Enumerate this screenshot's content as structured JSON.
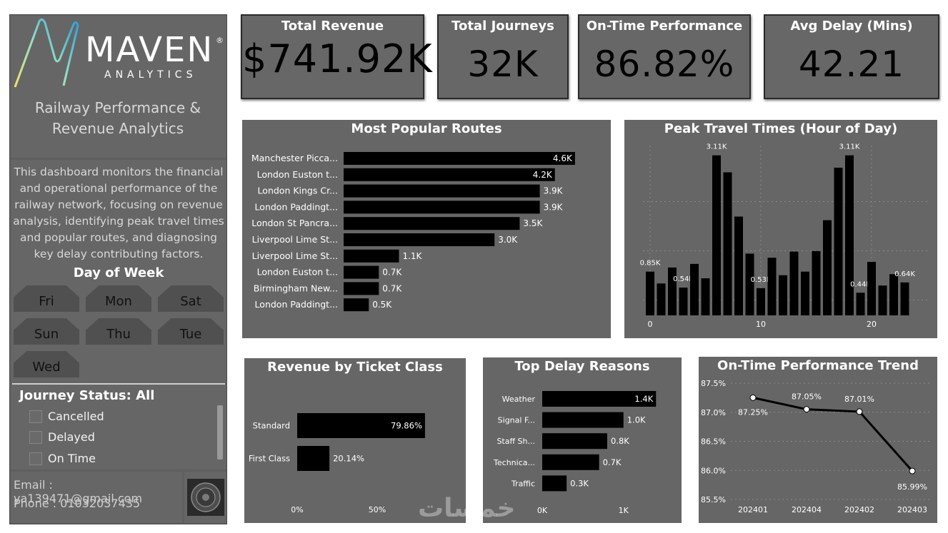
{
  "brand": {
    "name": "MAVEN",
    "reg": "®",
    "sub": "ANALYTICS"
  },
  "report_title": "Railway Performance & Revenue Analytics",
  "description": "This dashboard monitors the financial and operational performance of the railway network, focusing on revenue analysis, identifying peak travel times and popular routes, and diagnosing key delay contributing factors.",
  "day_slicer": {
    "title": "Day of Week",
    "options": [
      "Fri",
      "Mon",
      "Sat",
      "Sun",
      "Thu",
      "Tue",
      "Wed"
    ]
  },
  "status_slicer": {
    "title": "Journey Status: All",
    "options": [
      "Cancelled",
      "Delayed",
      "On Time"
    ]
  },
  "contact": {
    "email": "Email : ya139471@gmail.com",
    "phone": "Phone : 01032037435"
  },
  "kpis": {
    "revenue": {
      "label": "Total Revenue",
      "value": "$741.92K"
    },
    "journeys": {
      "label": "Total Journeys",
      "value": "32K"
    },
    "ontime": {
      "label": "On-Time Performance",
      "value": "86.82%"
    },
    "delay": {
      "label": "Avg Delay (Mins)",
      "value": "42.21"
    }
  },
  "watermark": "خمسات",
  "colors": {
    "panel": "#666666",
    "bar": "#000000",
    "text": "#ffffff"
  },
  "chart_data": [
    {
      "id": "routes",
      "type": "bar",
      "orientation": "horizontal",
      "title": "Most Popular Routes",
      "categories": [
        "Manchester Picca...",
        "London Euston t...",
        "London Kings Cr...",
        "London Paddingt...",
        "London St Pancra...",
        "Liverpool Lime St...",
        "Liverpool Lime St...",
        "London Euston t...",
        "Birmingham New...",
        "London Paddingt..."
      ],
      "values": [
        4.6,
        4.2,
        3.9,
        3.9,
        3.5,
        3.0,
        1.1,
        0.7,
        0.7,
        0.5
      ],
      "labels": [
        "4.6K",
        "4.2K",
        "3.9K",
        "3.9K",
        "3.5K",
        "3.0K",
        "1.1K",
        "0.7K",
        "0.7K",
        "0.5K"
      ],
      "xlim": [
        0,
        4.9
      ]
    },
    {
      "id": "peak",
      "type": "bar",
      "title": "Peak Travel Times (Hour of Day)",
      "x": [
        0,
        1,
        2,
        3,
        4,
        5,
        6,
        7,
        8,
        9,
        10,
        11,
        12,
        13,
        14,
        15,
        16,
        17,
        18,
        19,
        20,
        21,
        22,
        23
      ],
      "values": [
        0.85,
        0.62,
        0.93,
        0.54,
        1.0,
        0.72,
        3.11,
        2.78,
        1.92,
        1.2,
        0.53,
        1.12,
        0.78,
        1.24,
        0.85,
        1.25,
        1.85,
        2.87,
        3.11,
        0.44,
        1.04,
        0.58,
        0.8,
        0.64
      ],
      "data_labels": {
        "0": "0.85K",
        "3": "0.54K",
        "6": "3.11K",
        "10": "0.53K",
        "18": "3.11K",
        "19": "0.44K",
        "23": "0.64K"
      },
      "x_ticks": [
        "0",
        "10",
        "20"
      ],
      "ylim": [
        0,
        3.3
      ]
    },
    {
      "id": "ticket",
      "type": "bar",
      "orientation": "horizontal",
      "title": "Revenue by Ticket Class",
      "categories": [
        "Standard",
        "First Class"
      ],
      "values": [
        79.86,
        20.14
      ],
      "labels": [
        "79.86%",
        "20.14%"
      ],
      "x_ticks": [
        "0%",
        "50%"
      ],
      "xlim": [
        0,
        100
      ]
    },
    {
      "id": "delays",
      "type": "bar",
      "orientation": "horizontal",
      "title": "Top Delay Reasons",
      "categories": [
        "Weather",
        "Signal F...",
        "Staff Sh...",
        "Technica...",
        "Traffic"
      ],
      "values": [
        1.4,
        1.0,
        0.8,
        0.7,
        0.3
      ],
      "labels": [
        "1.4K",
        "1.0K",
        "0.8K",
        "0.7K",
        "0.3K"
      ],
      "x_ticks": [
        "0K",
        "1K"
      ],
      "xlim": [
        0,
        1.6
      ]
    },
    {
      "id": "trend",
      "type": "line",
      "title": "On-Time Performance Trend",
      "categories": [
        "202401",
        "202404",
        "202402",
        "202403"
      ],
      "values": [
        87.25,
        87.05,
        87.01,
        85.99
      ],
      "labels": [
        "87.25%",
        "87.05%",
        "87.01%",
        "85.99%"
      ],
      "y_ticks": [
        "87.5%",
        "87.0%",
        "86.5%",
        "86.0%",
        "85.5%"
      ],
      "ylim": [
        85.5,
        87.5
      ]
    }
  ]
}
